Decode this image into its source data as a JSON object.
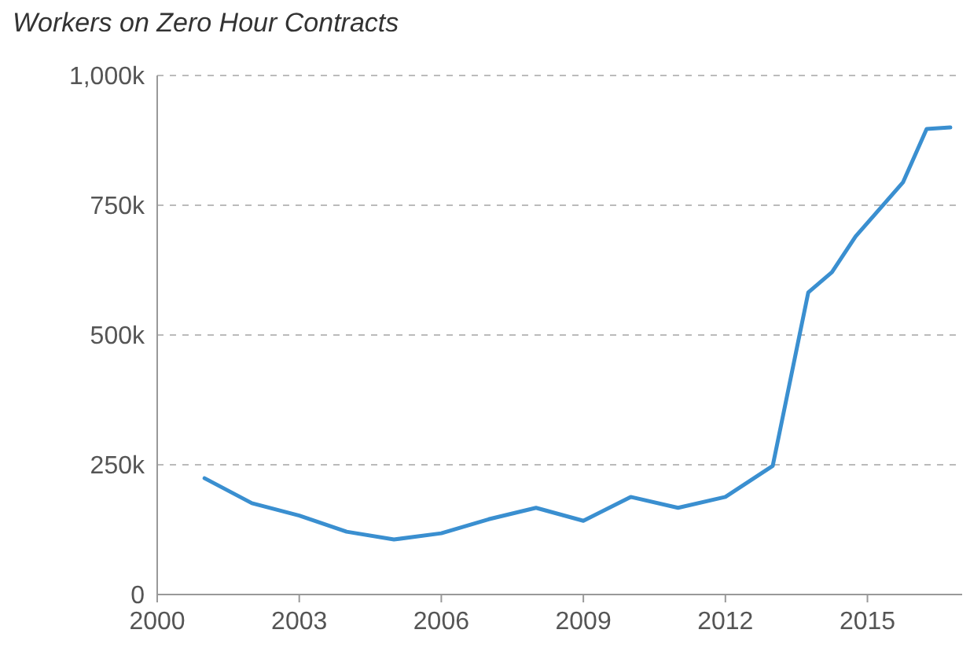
{
  "chart_data": {
    "type": "line",
    "title": "Workers on Zero Hour Contracts",
    "x": [
      2001,
      2002,
      2003,
      2004,
      2005,
      2006,
      2007,
      2008,
      2009,
      2010,
      2011,
      2012,
      2013,
      2013.75,
      2014.25,
      2014.75,
      2015.75,
      2016.25,
      2016.75
    ],
    "series": [
      {
        "color": "#3a8fd0",
        "values": [
          224,
          176,
          152,
          121,
          106,
          118,
          145,
          167,
          142,
          188,
          167,
          188,
          248,
          582,
          621,
          690,
          794,
          897,
          900
        ]
      }
    ],
    "xlim": [
      2000,
      2017
    ],
    "xticks": [
      2000,
      2003,
      2006,
      2009,
      2012,
      2015
    ],
    "ylim": [
      0,
      1000
    ],
    "yticks": [
      {
        "value": 0,
        "label": "0"
      },
      {
        "value": 250,
        "label": "250k"
      },
      {
        "value": 500,
        "label": "500k"
      },
      {
        "value": 750,
        "label": "750k"
      },
      {
        "value": 1000,
        "label": "1,000k"
      }
    ],
    "grid": "y",
    "line_style": "solid",
    "marker": "none"
  }
}
